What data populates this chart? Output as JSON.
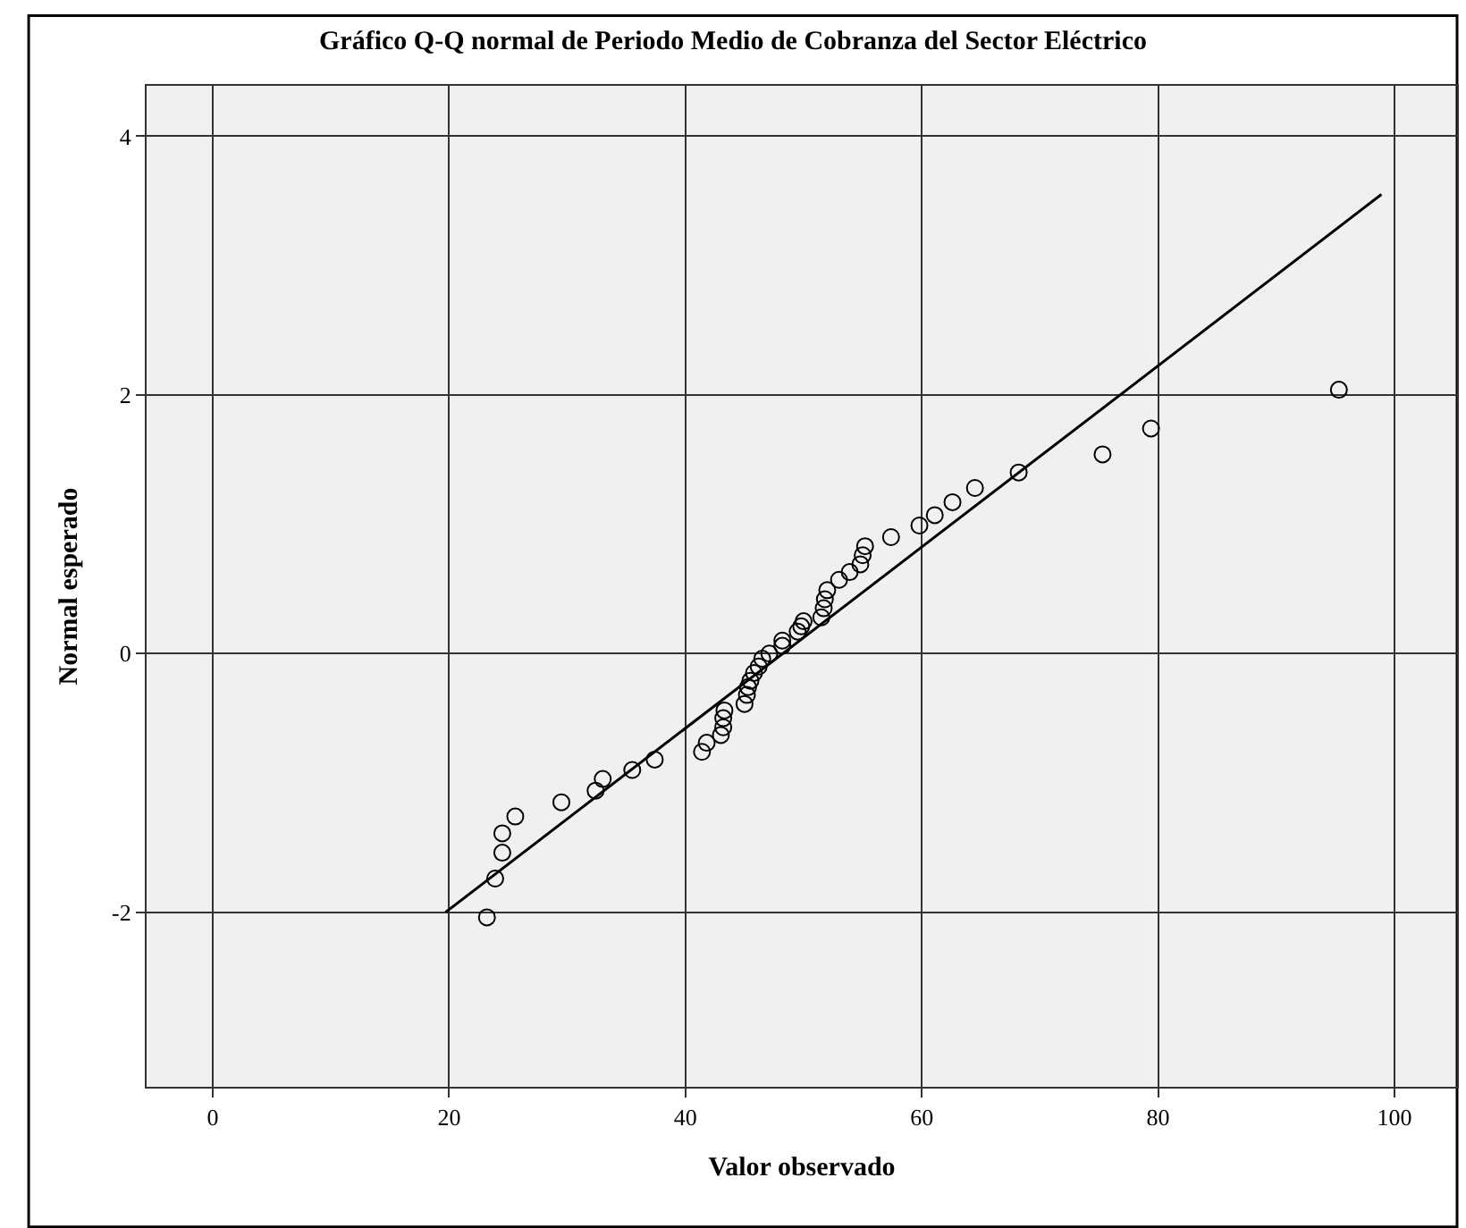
{
  "chart_data": {
    "type": "scatter",
    "title": "Gráfico Q-Q normal de Periodo Medio de Cobranza del Sector Eléctrico",
    "xlabel": "Valor observado",
    "ylabel": "Normal esperado",
    "series": [
      {
        "marker": "circle",
        "color": "#000000",
        "x": [
          23.2,
          23.9,
          24.5,
          24.5,
          25.6,
          29.5,
          32.4,
          33.0,
          35.5,
          37.4,
          41.4,
          41.8,
          43.0,
          43.2,
          43.2,
          43.3,
          45.0,
          45.2,
          45.3,
          45.5,
          45.8,
          46.2,
          46.5,
          47.1,
          48.2,
          48.2,
          49.5,
          49.8,
          50.0,
          51.5,
          51.7,
          51.8,
          52.0,
          53.0,
          53.9,
          54.8,
          55.0,
          55.2,
          57.4,
          59.8,
          61.1,
          62.6,
          64.5,
          68.2,
          75.3,
          79.4,
          95.3
        ],
        "values": [
          -2.04,
          -1.74,
          -1.54,
          -1.39,
          -1.26,
          -1.15,
          -1.06,
          -0.97,
          -0.9,
          -0.82,
          -0.76,
          -0.69,
          -0.63,
          -0.57,
          -0.5,
          -0.44,
          -0.39,
          -0.32,
          -0.26,
          -0.21,
          -0.15,
          -0.1,
          -0.04,
          0.0,
          0.06,
          0.1,
          0.17,
          0.21,
          0.25,
          0.28,
          0.35,
          0.42,
          0.49,
          0.57,
          0.63,
          0.69,
          0.76,
          0.83,
          0.9,
          0.99,
          1.07,
          1.17,
          1.28,
          1.4,
          1.54,
          1.74,
          2.04
        ]
      },
      {
        "type": "line",
        "marker": "none",
        "line_style": "solid",
        "color": "#000000",
        "x": [
          19.7,
          98.9
        ],
        "values": [
          -2.0,
          3.55
        ]
      }
    ],
    "xlim": [
      -5.6,
      105.3
    ],
    "ylim": [
      -3.35,
      4.39
    ],
    "xticks": [
      0,
      20,
      40,
      60,
      80,
      100
    ],
    "yticks": [
      -2,
      0,
      2,
      4
    ],
    "grid": true
  }
}
